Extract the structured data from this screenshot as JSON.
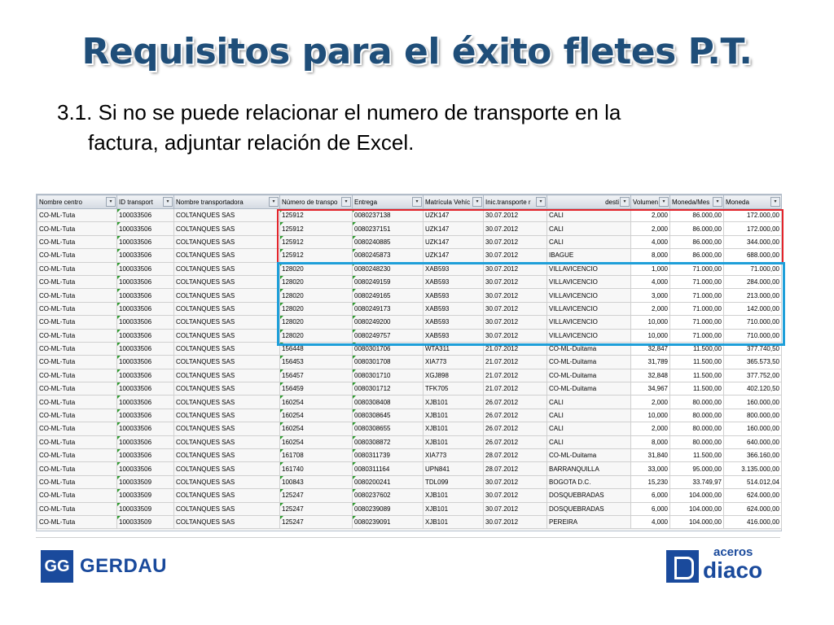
{
  "slide": {
    "title": "Requisitos para el éxito fletes P.T.",
    "line1": "3.1. Si no se puede relacionar el numero de transporte en la",
    "line2": "factura, adjuntar relación de Excel."
  },
  "table": {
    "columns": [
      "Nombre centro",
      "ID transport",
      "Nombre transportadora",
      "Número de transpo",
      "Entrega",
      "Matrícula Vehíc",
      "Inic.transporte r",
      "desti",
      "Volumen",
      "Moneda/Mes",
      "Moneda"
    ],
    "dropdown_glyph": "▾",
    "rows": [
      [
        "CO-ML-Tuta",
        "100033506",
        "COLTANQUES SAS",
        "125912",
        "0080237138",
        "UZK147",
        "30.07.2012",
        "CALI",
        "2,000",
        "86.000,00",
        "172.000,00"
      ],
      [
        "CO-ML-Tuta",
        "100033506",
        "COLTANQUES SAS",
        "125912",
        "0080237151",
        "UZK147",
        "30.07.2012",
        "CALI",
        "2,000",
        "86.000,00",
        "172.000,00"
      ],
      [
        "CO-ML-Tuta",
        "100033506",
        "COLTANQUES SAS",
        "125912",
        "0080240885",
        "UZK147",
        "30.07.2012",
        "CALI",
        "4,000",
        "86.000,00",
        "344.000,00"
      ],
      [
        "CO-ML-Tuta",
        "100033506",
        "COLTANQUES SAS",
        "125912",
        "0080245873",
        "UZK147",
        "30.07.2012",
        "IBAGUE",
        "8,000",
        "86.000,00",
        "688.000,00"
      ],
      [
        "CO-ML-Tuta",
        "100033506",
        "COLTANQUES SAS",
        "128020",
        "0080248230",
        "XAB593",
        "30.07.2012",
        "VILLAVICENCIO",
        "1,000",
        "71.000,00",
        "71.000,00"
      ],
      [
        "CO-ML-Tuta",
        "100033506",
        "COLTANQUES SAS",
        "128020",
        "0080249159",
        "XAB593",
        "30.07.2012",
        "VILLAVICENCIO",
        "4,000",
        "71.000,00",
        "284.000,00"
      ],
      [
        "CO-ML-Tuta",
        "100033506",
        "COLTANQUES SAS",
        "128020",
        "0080249165",
        "XAB593",
        "30.07.2012",
        "VILLAVICENCIO",
        "3,000",
        "71.000,00",
        "213.000,00"
      ],
      [
        "CO-ML-Tuta",
        "100033506",
        "COLTANQUES SAS",
        "128020",
        "0080249173",
        "XAB593",
        "30.07.2012",
        "VILLAVICENCIO",
        "2,000",
        "71.000,00",
        "142.000,00"
      ],
      [
        "CO-ML-Tuta",
        "100033506",
        "COLTANQUES SAS",
        "128020",
        "0080249200",
        "XAB593",
        "30.07.2012",
        "VILLAVICENCIO",
        "10,000",
        "71.000,00",
        "710.000,00"
      ],
      [
        "CO-ML-Tuta",
        "100033506",
        "COLTANQUES SAS",
        "128020",
        "0080249757",
        "XAB593",
        "30.07.2012",
        "VILLAVICENCIO",
        "10,000",
        "71.000,00",
        "710.000,00"
      ],
      [
        "CO-ML-Tuta",
        "100033506",
        "COLTANQUES SAS",
        "156448",
        "0080301706",
        "WTA311",
        "21.07.2012",
        "CO-ML-Duitama",
        "32,847",
        "11.500,00",
        "377.740,50"
      ],
      [
        "CO-ML-Tuta",
        "100033506",
        "COLTANQUES SAS",
        "156453",
        "0080301708",
        "XIA773",
        "21.07.2012",
        "CO-ML-Duitama",
        "31,789",
        "11.500,00",
        "365.573,50"
      ],
      [
        "CO-ML-Tuta",
        "100033506",
        "COLTANQUES SAS",
        "156457",
        "0080301710",
        "XGJ898",
        "21.07.2012",
        "CO-ML-Duitama",
        "32,848",
        "11.500,00",
        "377.752,00"
      ],
      [
        "CO-ML-Tuta",
        "100033506",
        "COLTANQUES SAS",
        "156459",
        "0080301712",
        "TFK705",
        "21.07.2012",
        "CO-ML-Duitama",
        "34,967",
        "11.500,00",
        "402.120,50"
      ],
      [
        "CO-ML-Tuta",
        "100033506",
        "COLTANQUES SAS",
        "160254",
        "0080308408",
        "XJB101",
        "26.07.2012",
        "CALI",
        "2,000",
        "80.000,00",
        "160.000,00"
      ],
      [
        "CO-ML-Tuta",
        "100033506",
        "COLTANQUES SAS",
        "160254",
        "0080308645",
        "XJB101",
        "26.07.2012",
        "CALI",
        "10,000",
        "80.000,00",
        "800.000,00"
      ],
      [
        "CO-ML-Tuta",
        "100033506",
        "COLTANQUES SAS",
        "160254",
        "0080308655",
        "XJB101",
        "26.07.2012",
        "CALI",
        "2,000",
        "80.000,00",
        "160.000,00"
      ],
      [
        "CO-ML-Tuta",
        "100033506",
        "COLTANQUES SAS",
        "160254",
        "0080308872",
        "XJB101",
        "26.07.2012",
        "CALI",
        "8,000",
        "80.000,00",
        "640.000,00"
      ],
      [
        "CO-ML-Tuta",
        "100033506",
        "COLTANQUES SAS",
        "161708",
        "0080311739",
        "XIA773",
        "28.07.2012",
        "CO-ML-Duitama",
        "31,840",
        "11.500,00",
        "366.160,00"
      ],
      [
        "CO-ML-Tuta",
        "100033506",
        "COLTANQUES SAS",
        "161740",
        "0080311164",
        "UPN841",
        "28.07.2012",
        "BARRANQUILLA",
        "33,000",
        "95.000,00",
        "3.135.000,00"
      ],
      [
        "CO-ML-Tuta",
        "100033509",
        "COLTANQUES SAS",
        "100843",
        "0080200241",
        "TDL099",
        "30.07.2012",
        "BOGOTA D.C.",
        "15,230",
        "33.749,97",
        "514.012,04"
      ],
      [
        "CO-ML-Tuta",
        "100033509",
        "COLTANQUES SAS",
        "125247",
        "0080237602",
        "XJB101",
        "30.07.2012",
        "DOSQUEBRADAS",
        "6,000",
        "104.000,00",
        "624.000,00"
      ],
      [
        "CO-ML-Tuta",
        "100033509",
        "COLTANQUES SAS",
        "125247",
        "0080239089",
        "XJB101",
        "30.07.2012",
        "DOSQUEBRADAS",
        "6,000",
        "104.000,00",
        "624.000,00"
      ],
      [
        "CO-ML-Tuta",
        "100033509",
        "COLTANQUES SAS",
        "125247",
        "0080239091",
        "XJB101",
        "30.07.2012",
        "PEREIRA",
        "4,000",
        "104.000,00",
        "416.000,00"
      ]
    ]
  },
  "logos": {
    "gerdau_mark": "GG",
    "gerdau": "GERDAU",
    "diaco_small": "aceros",
    "diaco": "diaco"
  }
}
